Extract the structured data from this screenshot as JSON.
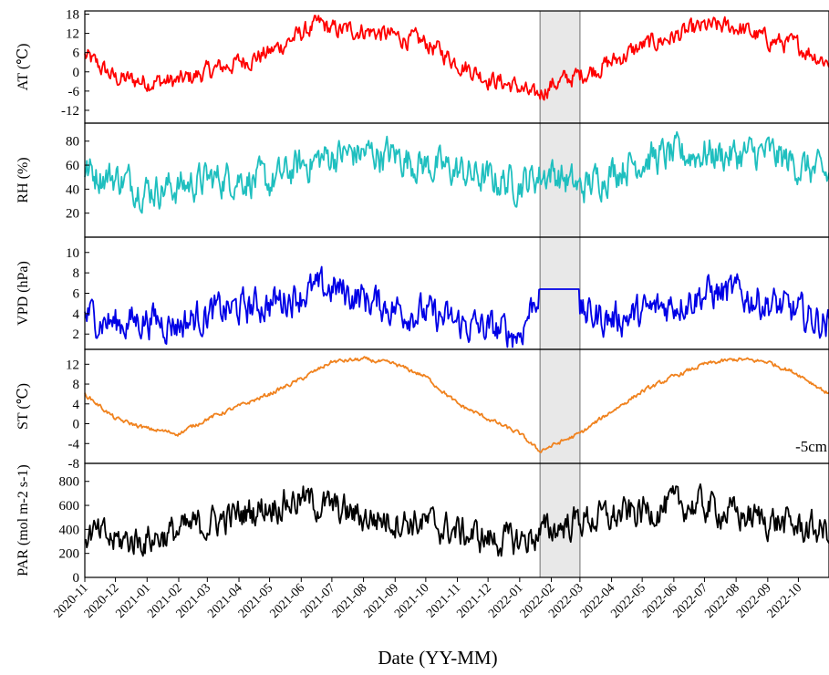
{
  "chart_data": [
    {
      "type": "line",
      "ylabel": "AT (℃)",
      "yticks": [
        -12,
        -6,
        0,
        6,
        12,
        18
      ],
      "ylim": [
        -16,
        19
      ],
      "color": "#ff0000",
      "series": [
        {
          "x": [
            "2020-11-01",
            "2020-12-01",
            "2021-01-01",
            "2021-02-01",
            "2021-03-01",
            "2021-04-01",
            "2021-05-01",
            "2021-06-01",
            "2021-06-20",
            "2021-07-01",
            "2021-08-01",
            "2021-09-01",
            "2021-10-01",
            "2021-11-01",
            "2021-12-01",
            "2022-01-01",
            "2022-01-15",
            "2022-02-01",
            "2022-03-01",
            "2022-04-01",
            "2022-05-01",
            "2022-06-01",
            "2022-07-01",
            "2022-08-01",
            "2022-09-01",
            "2022-10-01",
            "2022-10-31"
          ],
          "y": [
            5,
            -2,
            -3,
            -3,
            0,
            3,
            6,
            12,
            15,
            13,
            13,
            11,
            9,
            3,
            -2,
            -5,
            -8,
            -4,
            -1,
            3,
            8,
            11,
            14,
            14,
            10,
            8,
            3
          ]
        }
      ]
    },
    {
      "type": "line",
      "ylabel": "RH (%)",
      "yticks": [
        20,
        40,
        60,
        80
      ],
      "ylim": [
        0,
        95
      ],
      "color": "#1fbfbf",
      "series": [
        {
          "x": [
            "2020-11-01",
            "2020-12-01",
            "2021-01-01",
            "2021-02-01",
            "2021-03-01",
            "2021-04-01",
            "2021-05-01",
            "2021-06-01",
            "2021-07-01",
            "2021-08-01",
            "2021-09-01",
            "2021-10-01",
            "2021-11-01",
            "2021-12-01",
            "2022-01-01",
            "2022-02-01",
            "2022-03-01",
            "2022-04-01",
            "2022-05-01",
            "2022-06-01",
            "2022-07-01",
            "2022-08-01",
            "2022-09-01",
            "2022-10-01",
            "2022-10-31"
          ],
          "y": [
            55,
            50,
            40,
            42,
            48,
            50,
            45,
            60,
            68,
            70,
            68,
            60,
            55,
            48,
            45,
            55,
            40,
            55,
            65,
            68,
            70,
            68,
            70,
            60,
            50
          ]
        }
      ]
    },
    {
      "type": "line",
      "ylabel": "VPD (hPa)",
      "yticks": [
        2,
        4,
        6,
        8,
        10
      ],
      "ylim": [
        0.5,
        11.5
      ],
      "color": "#0000e6",
      "series": [
        {
          "x": [
            "2020-11-01",
            "2020-12-01",
            "2021-01-01",
            "2021-02-01",
            "2021-03-01",
            "2021-04-01",
            "2021-05-01",
            "2021-06-01",
            "2021-07-01",
            "2021-08-01",
            "2021-09-01",
            "2021-10-01",
            "2021-11-01",
            "2021-12-01",
            "2022-01-01",
            "2022-01-20",
            "2022-02-28",
            "2022-03-01",
            "2022-04-01",
            "2022-05-01",
            "2022-06-01",
            "2022-07-01",
            "2022-08-01",
            "2022-09-01",
            "2022-10-01",
            "2022-10-31"
          ],
          "y": [
            4,
            3,
            3.5,
            3,
            4,
            4.5,
            5,
            6,
            6.5,
            5.5,
            4.5,
            4,
            3,
            2.5,
            2,
            6.4,
            6.4,
            4,
            3.5,
            4,
            5,
            6,
            6,
            5,
            4,
            3
          ]
        }
      ]
    },
    {
      "type": "line",
      "ylabel": "ST (℃)",
      "yticks": [
        -8,
        -4,
        0,
        4,
        8,
        12
      ],
      "ylim": [
        -8,
        15
      ],
      "color": "#f0821e",
      "annotation": "-5cm",
      "series": [
        {
          "x": [
            "2020-11-01",
            "2020-12-01",
            "2021-01-01",
            "2021-02-01",
            "2021-03-01",
            "2021-04-01",
            "2021-05-01",
            "2021-06-01",
            "2021-07-01",
            "2021-08-01",
            "2021-09-01",
            "2021-10-01",
            "2021-11-01",
            "2021-12-01",
            "2022-01-01",
            "2022-01-20",
            "2022-02-01",
            "2022-03-01",
            "2022-04-01",
            "2022-05-01",
            "2022-06-01",
            "2022-07-01",
            "2022-08-01",
            "2022-09-01",
            "2022-10-01",
            "2022-10-31"
          ],
          "y": [
            6,
            1,
            -1,
            -2,
            1,
            3.5,
            6,
            9,
            12.5,
            13,
            12,
            9.5,
            4,
            1,
            -2,
            -5.5,
            -4.5,
            -2,
            2.5,
            6.5,
            9.5,
            12,
            13,
            12.5,
            10,
            6
          ]
        }
      ]
    },
    {
      "type": "line",
      "ylabel": "PAR (mol m-2 s-1)",
      "yticks": [
        0,
        200,
        400,
        600,
        800
      ],
      "ylim": [
        0,
        950
      ],
      "color": "#000000",
      "series": [
        {
          "x": [
            "2020-11-01",
            "2020-12-01",
            "2021-01-01",
            "2021-02-01",
            "2021-03-01",
            "2021-04-01",
            "2021-05-01",
            "2021-06-01",
            "2021-07-01",
            "2021-08-01",
            "2021-09-01",
            "2021-10-01",
            "2021-11-01",
            "2021-12-01",
            "2022-01-01",
            "2022-02-01",
            "2022-03-01",
            "2022-04-01",
            "2022-05-01",
            "2022-06-01",
            "2022-07-01",
            "2022-08-01",
            "2022-09-01",
            "2022-10-01",
            "2022-10-31"
          ],
          "y": [
            380,
            300,
            320,
            380,
            450,
            520,
            600,
            650,
            580,
            500,
            480,
            450,
            380,
            320,
            300,
            400,
            480,
            500,
            550,
            600,
            600,
            520,
            480,
            420,
            380
          ]
        }
      ]
    }
  ],
  "x_axis": {
    "title": "Date (YY-MM)",
    "ticks": [
      "2020-11",
      "2020-12",
      "2021-01",
      "2021-02",
      "2021-03",
      "2021-04",
      "2021-05",
      "2021-06",
      "2021-07",
      "2021-08",
      "2021-09",
      "2021-10",
      "2021-11",
      "2021-12",
      "2022-01",
      "2022-02",
      "2022-03",
      "2022-04",
      "2022-05",
      "2022-06",
      "2022-07",
      "2022-08",
      "2022-09",
      "2022-10"
    ],
    "start": "2020-11-01",
    "end": "2022-10-31"
  },
  "highlight": {
    "start": "2022-01-21",
    "end": "2022-03-01",
    "color": "#e8e8e8"
  }
}
